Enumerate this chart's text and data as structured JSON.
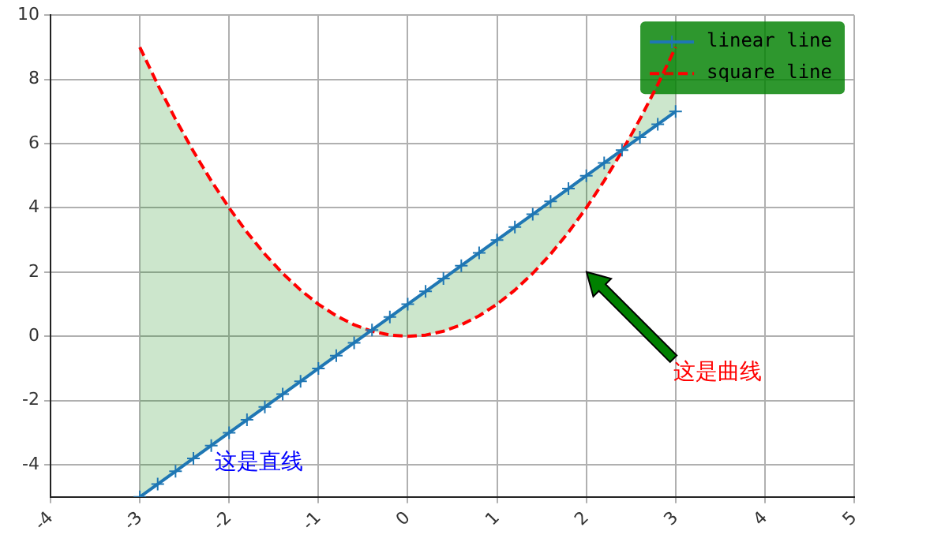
{
  "chart_data": {
    "type": "line",
    "x": [
      -3,
      -2.8,
      -2.6,
      -2.4,
      -2.2,
      -2,
      -1.8,
      -1.6,
      -1.4,
      -1.2,
      -1,
      -0.8,
      -0.6,
      -0.4,
      -0.2,
      0,
      0.2,
      0.4,
      0.6,
      0.8,
      1,
      1.2,
      1.4,
      1.6,
      1.8,
      2,
      2.2,
      2.4,
      2.6,
      2.8,
      3
    ],
    "series": [
      {
        "name": "linear line",
        "color": "#1f77b4",
        "marker": "cross",
        "line_style": "solid",
        "values": [
          -5,
          -4.6,
          -4.2,
          -3.8,
          -3.4,
          -3,
          -2.6,
          -2.2,
          -1.8,
          -1.4,
          -1,
          -0.6,
          -0.2,
          0.2,
          0.6,
          1,
          1.4,
          1.8,
          2.2,
          2.6,
          3,
          3.4,
          3.8,
          4.2,
          4.6,
          5,
          5.4,
          5.8,
          6.2,
          6.6,
          7
        ],
        "lower": [
          -5,
          -4.6,
          -4.2,
          -3.8,
          -3.4,
          -3,
          -2.6,
          -2.2,
          -1.8,
          -1.4,
          -1,
          -0.6,
          -0.2,
          0.16,
          0.04,
          0,
          0.04,
          0.16,
          0.36,
          0.64,
          1,
          1.44,
          1.96,
          2.56,
          3.24,
          4,
          4.84,
          5.76,
          6.2,
          6.6,
          7
        ],
        "upper": [
          9,
          7.84,
          6.76,
          5.76,
          4.84,
          4,
          3.24,
          2.56,
          1.96,
          1.44,
          1,
          0.64,
          0.36,
          0.2,
          0.6,
          1,
          1.4,
          1.8,
          2.2,
          2.6,
          3,
          3.4,
          3.8,
          4.2,
          4.6,
          5,
          5.4,
          5.8,
          6.76,
          7.84,
          9
        ]
      },
      {
        "name": "square line",
        "color": "#ff0000",
        "marker": "none",
        "line_style": "dashed",
        "values": [
          9,
          7.84,
          6.76,
          5.76,
          4.84,
          4,
          3.24,
          2.56,
          1.96,
          1.44,
          1,
          0.64,
          0.36,
          0.16,
          0.04,
          0,
          0.04,
          0.16,
          0.36,
          0.64,
          1,
          1.44,
          1.96,
          2.56,
          3.24,
          4,
          4.84,
          5.76,
          6.76,
          7.84,
          9
        ]
      }
    ],
    "xlim": [
      -4,
      5
    ],
    "xticks": [
      -4,
      -3,
      -2,
      -1,
      0,
      1,
      2,
      3,
      4,
      5
    ],
    "ylim": [
      -5,
      10
    ],
    "yticks": [
      -4,
      -2,
      0,
      2,
      4,
      6,
      8,
      10
    ],
    "grid": true,
    "legend": "top right",
    "annotations": [
      "这是直线",
      "这是曲线"
    ]
  }
}
